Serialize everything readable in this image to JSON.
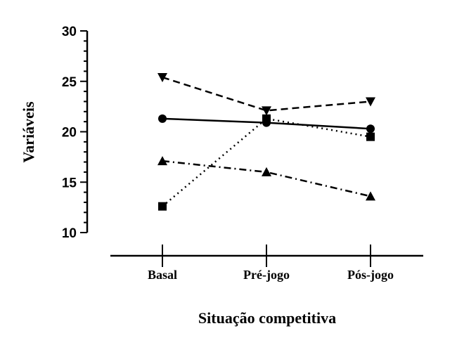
{
  "chart_data": {
    "type": "line",
    "xlabel": "Situação competitiva",
    "ylabel": "Variáveis",
    "categories": [
      "Basal",
      "Pré-jogo",
      "Pós-jogo"
    ],
    "ylim": [
      10,
      30
    ],
    "yticks": [
      10,
      15,
      20,
      25,
      30
    ],
    "grid": false,
    "series": [
      {
        "marker": "circle",
        "line_style": "solid",
        "values": [
          21.3,
          20.9,
          20.3
        ]
      },
      {
        "marker": "square",
        "line_style": "dotted",
        "values": [
          12.6,
          21.3,
          19.5
        ]
      },
      {
        "marker": "triangle-up",
        "line_style": "dash-dot",
        "values": [
          17.1,
          16.0,
          13.6
        ]
      },
      {
        "marker": "triangle-down",
        "line_style": "dashed",
        "values": [
          25.4,
          22.1,
          23.0
        ]
      }
    ]
  }
}
